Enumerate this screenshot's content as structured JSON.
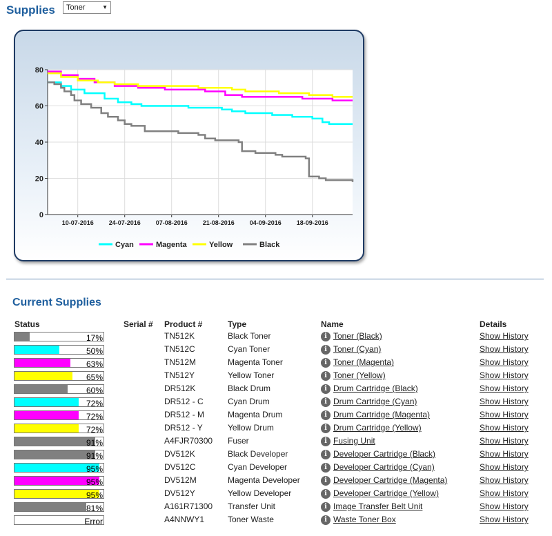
{
  "header": {
    "title": "Supplies",
    "select_value": "Toner"
  },
  "chart": {
    "y_ticks": [
      "0",
      "20",
      "40",
      "60",
      "80"
    ],
    "x_ticks": [
      "10-07-2016",
      "24-07-2016",
      "07-08-2016",
      "21-08-2016",
      "04-09-2016",
      "18-09-2016"
    ]
  },
  "chart_data": {
    "type": "line",
    "ylim": [
      0,
      80
    ],
    "x_range": [
      "2016-07-01",
      "2016-09-30"
    ],
    "series": [
      {
        "name": "Cyan",
        "color": "#00ffff",
        "points": [
          [
            "2016-07-01",
            73
          ],
          [
            "2016-07-05",
            71
          ],
          [
            "2016-07-08",
            69
          ],
          [
            "2016-07-12",
            67
          ],
          [
            "2016-07-18",
            64
          ],
          [
            "2016-07-22",
            62
          ],
          [
            "2016-07-26",
            61
          ],
          [
            "2016-07-29",
            60
          ],
          [
            "2016-08-10",
            60
          ],
          [
            "2016-08-12",
            59
          ],
          [
            "2016-08-22",
            58
          ],
          [
            "2016-08-25",
            57
          ],
          [
            "2016-08-29",
            56
          ],
          [
            "2016-09-06",
            55
          ],
          [
            "2016-09-12",
            54
          ],
          [
            "2016-09-18",
            53
          ],
          [
            "2016-09-21",
            51
          ],
          [
            "2016-09-23",
            50
          ],
          [
            "2016-09-30",
            50
          ]
        ]
      },
      {
        "name": "Magenta",
        "color": "#ff00ff",
        "points": [
          [
            "2016-07-01",
            79
          ],
          [
            "2016-07-05",
            77
          ],
          [
            "2016-07-10",
            75
          ],
          [
            "2016-07-15",
            73
          ],
          [
            "2016-07-21",
            71
          ],
          [
            "2016-07-28",
            70
          ],
          [
            "2016-08-05",
            69
          ],
          [
            "2016-08-17",
            68
          ],
          [
            "2016-08-23",
            66
          ],
          [
            "2016-08-28",
            65
          ],
          [
            "2016-09-15",
            64
          ],
          [
            "2016-09-24",
            63
          ],
          [
            "2016-09-30",
            63
          ]
        ]
      },
      {
        "name": "Yellow",
        "color": "#ffff00",
        "points": [
          [
            "2016-07-01",
            78
          ],
          [
            "2016-07-05",
            76
          ],
          [
            "2016-07-10",
            74
          ],
          [
            "2016-07-16",
            73
          ],
          [
            "2016-07-21",
            72
          ],
          [
            "2016-07-28",
            71
          ],
          [
            "2016-08-10",
            71
          ],
          [
            "2016-08-15",
            70
          ],
          [
            "2016-08-25",
            69
          ],
          [
            "2016-08-29",
            68
          ],
          [
            "2016-09-08",
            67
          ],
          [
            "2016-09-17",
            66
          ],
          [
            "2016-09-24",
            65
          ],
          [
            "2016-09-30",
            65
          ]
        ]
      },
      {
        "name": "Black",
        "color": "#808080",
        "points": [
          [
            "2016-07-01",
            73
          ],
          [
            "2016-07-03",
            72
          ],
          [
            "2016-07-05",
            70
          ],
          [
            "2016-07-06",
            68
          ],
          [
            "2016-07-08",
            66
          ],
          [
            "2016-07-09",
            63
          ],
          [
            "2016-07-11",
            61
          ],
          [
            "2016-07-14",
            59
          ],
          [
            "2016-07-17",
            56
          ],
          [
            "2016-07-19",
            54
          ],
          [
            "2016-07-22",
            52
          ],
          [
            "2016-07-24",
            50
          ],
          [
            "2016-07-26",
            49
          ],
          [
            "2016-07-30",
            46
          ],
          [
            "2016-08-08",
            46
          ],
          [
            "2016-08-09",
            45
          ],
          [
            "2016-08-15",
            44
          ],
          [
            "2016-08-17",
            42
          ],
          [
            "2016-08-20",
            41
          ],
          [
            "2016-08-27",
            40
          ],
          [
            "2016-08-28",
            35
          ],
          [
            "2016-09-01",
            34
          ],
          [
            "2016-09-07",
            33
          ],
          [
            "2016-09-09",
            32
          ],
          [
            "2016-09-16",
            31
          ],
          [
            "2016-09-17",
            21
          ],
          [
            "2016-09-20",
            20
          ],
          [
            "2016-09-22",
            19
          ],
          [
            "2016-09-30",
            18
          ]
        ]
      }
    ],
    "legend_position": "bottom"
  },
  "current": {
    "title": "Current Supplies",
    "headers": {
      "status": "Status",
      "serial": "Serial #",
      "product": "Product #",
      "type": "Type",
      "name": "Name",
      "details": "Details"
    },
    "rows": [
      {
        "pct": 17,
        "label": "17%",
        "color": "#808080",
        "product": "TN512K",
        "type": "Black Toner",
        "name": "Toner (Black)",
        "details": "Show History"
      },
      {
        "pct": 50,
        "label": "50%",
        "color": "#00ffff",
        "product": "TN512C",
        "type": "Cyan Toner",
        "name": "Toner (Cyan)",
        "details": "Show History"
      },
      {
        "pct": 63,
        "label": "63%",
        "color": "#ff00ff",
        "product": "TN512M",
        "type": "Magenta Toner",
        "name": "Toner (Magenta)",
        "details": "Show History"
      },
      {
        "pct": 65,
        "label": "65%",
        "color": "#ffff00",
        "product": "TN512Y",
        "type": "Yellow Toner",
        "name": "Toner (Yellow)",
        "details": "Show History"
      },
      {
        "pct": 60,
        "label": "60%",
        "color": "#808080",
        "product": "DR512K",
        "type": "Black Drum",
        "name": "Drum Cartridge (Black)",
        "details": "Show History"
      },
      {
        "pct": 72,
        "label": "72%",
        "color": "#00ffff",
        "product": "DR512 - C",
        "type": "Cyan Drum",
        "name": "Drum Cartridge (Cyan)",
        "details": "Show History"
      },
      {
        "pct": 72,
        "label": "72%",
        "color": "#ff00ff",
        "product": "DR512 - M",
        "type": "Magenta Drum",
        "name": "Drum Cartridge (Magenta)",
        "details": "Show History"
      },
      {
        "pct": 72,
        "label": "72%",
        "color": "#ffff00",
        "product": "DR512 - Y",
        "type": "Yellow Drum",
        "name": "Drum Cartridge (Yellow)",
        "details": "Show History"
      },
      {
        "pct": 91,
        "label": "91%",
        "color": "#808080",
        "product": "A4FJR70300",
        "type": "Fuser",
        "name": "Fusing Unit",
        "details": "Show History"
      },
      {
        "pct": 91,
        "label": "91%",
        "color": "#808080",
        "product": "DV512K",
        "type": "Black Developer",
        "name": "Developer Cartridge (Black)",
        "details": "Show History"
      },
      {
        "pct": 95,
        "label": "95%",
        "color": "#00ffff",
        "product": "DV512C",
        "type": "Cyan Developer",
        "name": "Developer Cartridge (Cyan)",
        "details": "Show History"
      },
      {
        "pct": 95,
        "label": "95%",
        "color": "#ff00ff",
        "product": "DV512M",
        "type": "Magenta Developer",
        "name": "Developer Cartridge (Magenta)",
        "details": "Show History"
      },
      {
        "pct": 95,
        "label": "95%",
        "color": "#ffff00",
        "product": "DV512Y",
        "type": "Yellow Developer",
        "name": "Developer Cartridge (Yellow)",
        "details": "Show History"
      },
      {
        "pct": 81,
        "label": "81%",
        "color": "#808080",
        "product": "A161R71300",
        "type": "Transfer Unit",
        "name": "Image Transfer Belt Unit",
        "details": "Show History"
      },
      {
        "pct": 0,
        "label": "Error",
        "color": "#808080",
        "product": "A4NNWY1",
        "type": "Toner Waste",
        "name": "Waste Toner Box",
        "details": "Show History"
      }
    ]
  }
}
